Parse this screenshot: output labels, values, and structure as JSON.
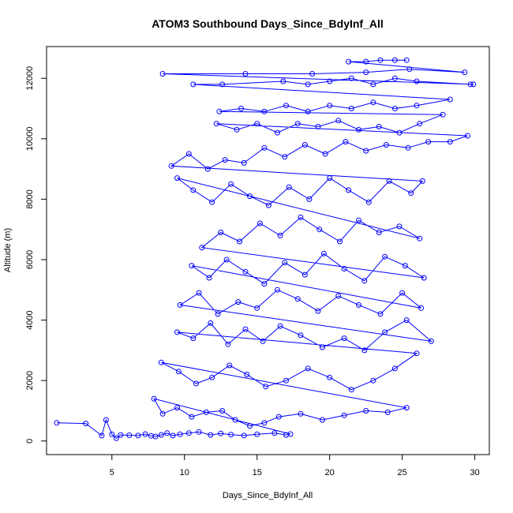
{
  "chart_data": {
    "type": "scatter",
    "title": "ATOM3 Southbound Days_Since_BdyInf_All",
    "xlabel": "Days_Since_BdyInf_All",
    "ylabel": "Altitude (m)",
    "xlim": [
      0.5,
      31
    ],
    "ylim": [
      -450,
      13050
    ],
    "x_ticks": [
      5,
      10,
      15,
      20,
      25,
      30
    ],
    "y_ticks": [
      0,
      2000,
      4000,
      6000,
      8000,
      10000,
      12000
    ],
    "grid": false,
    "legend": "none",
    "style": "points connected by lines (open circles)",
    "series": [
      {
        "color": "#0000ff",
        "points": [
          [
            1.2,
            600
          ],
          [
            3.2,
            580
          ],
          [
            4.3,
            180
          ],
          [
            4.6,
            700
          ],
          [
            5.0,
            220
          ],
          [
            5.3,
            90
          ],
          [
            5.6,
            200
          ],
          [
            6.2,
            190
          ],
          [
            6.8,
            180
          ],
          [
            7.3,
            230
          ],
          [
            7.7,
            170
          ],
          [
            8.0,
            150
          ],
          [
            8.4,
            200
          ],
          [
            8.8,
            260
          ],
          [
            9.2,
            180
          ],
          [
            9.7,
            220
          ],
          [
            10.3,
            260
          ],
          [
            11.0,
            300
          ],
          [
            11.8,
            200
          ],
          [
            12.5,
            250
          ],
          [
            13.2,
            210
          ],
          [
            14.1,
            180
          ],
          [
            15.0,
            220
          ],
          [
            16.2,
            260
          ],
          [
            17.0,
            200
          ],
          [
            17.3,
            230
          ],
          [
            7.9,
            1400
          ],
          [
            8.5,
            900
          ],
          [
            9.5,
            1100
          ],
          [
            10.5,
            800
          ],
          [
            11.5,
            950
          ],
          [
            12.6,
            1000
          ],
          [
            13.5,
            700
          ],
          [
            14.5,
            500
          ],
          [
            15.5,
            600
          ],
          [
            16.5,
            800
          ],
          [
            18.0,
            900
          ],
          [
            19.5,
            700
          ],
          [
            21.0,
            850
          ],
          [
            22.5,
            1000
          ],
          [
            24.0,
            950
          ],
          [
            25.3,
            1100
          ],
          [
            8.4,
            2600
          ],
          [
            9.6,
            2300
          ],
          [
            10.8,
            1900
          ],
          [
            11.9,
            2100
          ],
          [
            13.1,
            2500
          ],
          [
            14.3,
            2200
          ],
          [
            15.6,
            1800
          ],
          [
            17.0,
            2000
          ],
          [
            18.5,
            2400
          ],
          [
            20.0,
            2100
          ],
          [
            21.5,
            1700
          ],
          [
            23.0,
            2000
          ],
          [
            24.5,
            2400
          ],
          [
            26.0,
            2900
          ],
          [
            9.5,
            3600
          ],
          [
            10.6,
            3400
          ],
          [
            11.8,
            3900
          ],
          [
            13.0,
            3200
          ],
          [
            14.2,
            3700
          ],
          [
            15.4,
            3300
          ],
          [
            16.6,
            3800
          ],
          [
            18.0,
            3500
          ],
          [
            19.5,
            3100
          ],
          [
            21.0,
            3400
          ],
          [
            22.4,
            3000
          ],
          [
            23.8,
            3600
          ],
          [
            25.3,
            4000
          ],
          [
            27.0,
            3300
          ],
          [
            9.7,
            4500
          ],
          [
            11.0,
            4900
          ],
          [
            12.3,
            4200
          ],
          [
            13.7,
            4600
          ],
          [
            15.0,
            4400
          ],
          [
            16.4,
            5000
          ],
          [
            17.8,
            4700
          ],
          [
            19.2,
            4300
          ],
          [
            20.6,
            4800
          ],
          [
            22.0,
            4500
          ],
          [
            23.5,
            4200
          ],
          [
            25.0,
            4900
          ],
          [
            26.3,
            4400
          ],
          [
            10.5,
            5800
          ],
          [
            11.7,
            5400
          ],
          [
            12.9,
            6000
          ],
          [
            14.2,
            5600
          ],
          [
            15.5,
            5200
          ],
          [
            16.9,
            5900
          ],
          [
            18.3,
            5500
          ],
          [
            19.6,
            6200
          ],
          [
            21.0,
            5700
          ],
          [
            22.4,
            5300
          ],
          [
            23.8,
            6100
          ],
          [
            25.2,
            5800
          ],
          [
            26.5,
            5400
          ],
          [
            11.2,
            6400
          ],
          [
            12.5,
            6900
          ],
          [
            13.8,
            6600
          ],
          [
            15.2,
            7200
          ],
          [
            16.6,
            6800
          ],
          [
            18.0,
            7400
          ],
          [
            19.3,
            7000
          ],
          [
            20.7,
            6600
          ],
          [
            22.0,
            7300
          ],
          [
            23.4,
            6900
          ],
          [
            24.8,
            7100
          ],
          [
            26.2,
            6700
          ],
          [
            9.5,
            8700
          ],
          [
            10.6,
            8300
          ],
          [
            11.9,
            7900
          ],
          [
            13.2,
            8500
          ],
          [
            14.5,
            8100
          ],
          [
            15.8,
            7800
          ],
          [
            17.2,
            8400
          ],
          [
            18.6,
            8000
          ],
          [
            20.0,
            8700
          ],
          [
            21.3,
            8300
          ],
          [
            22.7,
            7900
          ],
          [
            24.1,
            8600
          ],
          [
            25.6,
            8200
          ],
          [
            26.4,
            8600
          ],
          [
            9.1,
            9100
          ],
          [
            10.3,
            9500
          ],
          [
            11.6,
            9000
          ],
          [
            12.8,
            9300
          ],
          [
            14.1,
            9200
          ],
          [
            15.5,
            9700
          ],
          [
            16.9,
            9400
          ],
          [
            18.3,
            9800
          ],
          [
            19.7,
            9500
          ],
          [
            21.1,
            9900
          ],
          [
            22.5,
            9600
          ],
          [
            23.9,
            9800
          ],
          [
            25.4,
            9700
          ],
          [
            26.8,
            9900
          ],
          [
            28.3,
            9900
          ],
          [
            29.5,
            10100
          ],
          [
            12.2,
            10500
          ],
          [
            13.6,
            10300
          ],
          [
            15.0,
            10500
          ],
          [
            16.4,
            10200
          ],
          [
            17.8,
            10500
          ],
          [
            19.2,
            10400
          ],
          [
            20.6,
            10600
          ],
          [
            22.0,
            10300
          ],
          [
            23.4,
            10400
          ],
          [
            24.8,
            10200
          ],
          [
            26.2,
            10500
          ],
          [
            27.8,
            10800
          ],
          [
            12.4,
            10900
          ],
          [
            13.9,
            11000
          ],
          [
            15.5,
            10900
          ],
          [
            17.0,
            11100
          ],
          [
            18.5,
            10900
          ],
          [
            20.0,
            11100
          ],
          [
            21.5,
            11000
          ],
          [
            23.0,
            11200
          ],
          [
            24.5,
            11000
          ],
          [
            26.0,
            11100
          ],
          [
            28.3,
            11300
          ],
          [
            10.6,
            11800
          ],
          [
            12.6,
            11800
          ],
          [
            16.8,
            11900
          ],
          [
            18.5,
            11800
          ],
          [
            20.0,
            11900
          ],
          [
            21.5,
            12000
          ],
          [
            23.0,
            11800
          ],
          [
            24.5,
            12000
          ],
          [
            26.0,
            11900
          ],
          [
            29.7,
            11800
          ],
          [
            29.9,
            11800
          ],
          [
            8.5,
            12150
          ],
          [
            14.2,
            12150
          ],
          [
            18.8,
            12150
          ],
          [
            22.5,
            12200
          ],
          [
            25.5,
            12300
          ],
          [
            29.3,
            12200
          ],
          [
            21.3,
            12550
          ],
          [
            22.5,
            12550
          ],
          [
            23.5,
            12600
          ],
          [
            24.5,
            12600
          ],
          [
            25.3,
            12600
          ]
        ]
      }
    ]
  }
}
